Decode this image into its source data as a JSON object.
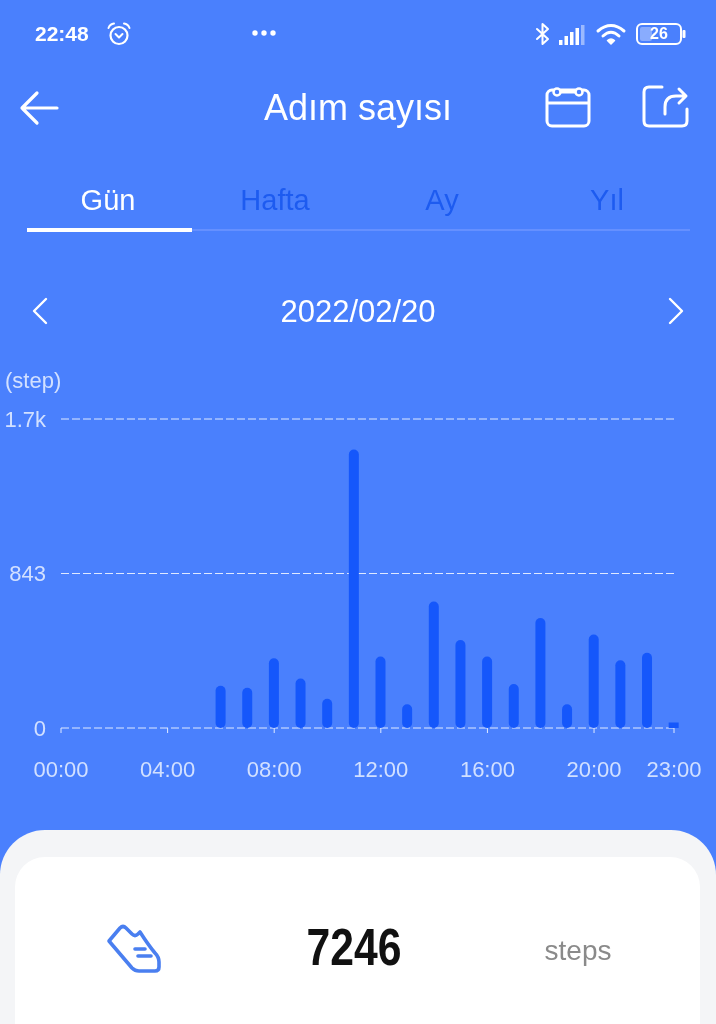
{
  "chart_data": {
    "type": "bar",
    "title": "Adım sayısı",
    "subtitle": "2022/02/20",
    "ylabel": "(step)",
    "x": [
      6,
      7,
      8,
      9,
      10,
      11,
      12,
      13,
      14,
      15,
      16,
      17,
      18,
      19,
      20,
      21,
      22,
      23
    ],
    "values": [
      230,
      220,
      380,
      270,
      160,
      1520,
      390,
      130,
      690,
      480,
      390,
      240,
      600,
      130,
      510,
      370,
      410,
      30
    ],
    "color": "#1557fb",
    "xlim": [
      0,
      23
    ],
    "xticks": [
      {
        "value": 0,
        "label": "00:00"
      },
      {
        "value": 4,
        "label": "04:00"
      },
      {
        "value": 8,
        "label": "08:00"
      },
      {
        "value": 12,
        "label": "12:00"
      },
      {
        "value": 16,
        "label": "16:00"
      },
      {
        "value": 20,
        "label": "20:00"
      },
      {
        "value": 23,
        "label": "23:00"
      }
    ],
    "ylim": [
      0,
      1686
    ],
    "yticks": [
      0,
      843,
      {
        "value": 1686,
        "label": "1.7k"
      }
    ],
    "grid": "y",
    "annotations": [
      "22:48",
      "26",
      "Gün",
      "Hafta",
      "Ay",
      "Yıl",
      "7246",
      "steps"
    ]
  }
}
